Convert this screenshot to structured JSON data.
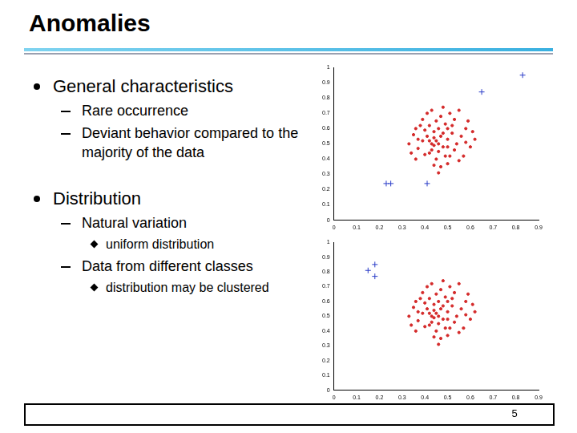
{
  "slide": {
    "title": "Anomalies",
    "bullets": [
      {
        "text": "General characteristics",
        "items": [
          {
            "text": "Rare occurrence"
          },
          {
            "text": "Deviant behavior compared to the majority of the data"
          }
        ]
      },
      {
        "text": "Distribution",
        "items": [
          {
            "text": "Natural variation",
            "items": [
              {
                "text": "uniform distribution"
              }
            ]
          },
          {
            "text": "Data from different classes",
            "items": [
              {
                "text": "distribution may be clustered"
              }
            ]
          }
        ]
      }
    ],
    "page_number": 5
  },
  "chart_data": [
    {
      "type": "scatter",
      "xlim": [
        0,
        0.9
      ],
      "ylim": [
        0,
        1
      ],
      "xticks": [
        0,
        0.1,
        0.2,
        0.3,
        0.4,
        0.5,
        0.6,
        0.7,
        0.8,
        0.9
      ],
      "yticks": [
        0,
        0.1,
        0.2,
        0.3,
        0.4,
        0.5,
        0.6,
        0.7,
        0.8,
        0.9,
        1
      ],
      "grid": false,
      "series": [
        {
          "color": "#d42a2a",
          "marker": "circle",
          "x": [
            0.45,
            0.47,
            0.43,
            0.5,
            0.44,
            0.48,
            0.41,
            0.52,
            0.46,
            0.39,
            0.54,
            0.42,
            0.49,
            0.37,
            0.56,
            0.45,
            0.51,
            0.4,
            0.58,
            0.35,
            0.47,
            0.53,
            0.38,
            0.6,
            0.44,
            0.5,
            0.36,
            0.57,
            0.41,
            0.55,
            0.33,
            0.62,
            0.48,
            0.46,
            0.39,
            0.59,
            0.43,
            0.5,
            0.46,
            0.44,
            0.48,
            0.42,
            0.53,
            0.4,
            0.52,
            0.34,
            0.61,
            0.45,
            0.49,
            0.37,
            0.55,
            0.43,
            0.51,
            0.47,
            0.58,
            0.36,
            0.46,
            0.5,
            0.44,
            0.42
          ],
          "values": [
            0.52,
            0.55,
            0.5,
            0.53,
            0.58,
            0.48,
            0.55,
            0.57,
            0.45,
            0.52,
            0.5,
            0.62,
            0.63,
            0.47,
            0.55,
            0.4,
            0.42,
            0.43,
            0.6,
            0.56,
            0.68,
            0.66,
            0.62,
            0.48,
            0.36,
            0.37,
            0.4,
            0.42,
            0.7,
            0.72,
            0.5,
            0.53,
            0.74,
            0.31,
            0.66,
            0.65,
            0.46,
            0.6,
            0.5,
            0.54,
            0.57,
            0.44,
            0.46,
            0.59,
            0.62,
            0.44,
            0.58,
            0.65,
            0.42,
            0.53,
            0.39,
            0.72,
            0.7,
            0.35,
            0.51,
            0.6,
            0.6,
            0.48,
            0.49,
            0.52
          ]
        },
        {
          "color": "#2a3cc8",
          "marker": "cross",
          "x": [
            0.83,
            0.65,
            0.23,
            0.25,
            0.41
          ],
          "values": [
            0.95,
            0.84,
            0.24,
            0.24,
            0.24
          ]
        }
      ]
    },
    {
      "type": "scatter",
      "xlim": [
        0,
        0.9
      ],
      "ylim": [
        0,
        1
      ],
      "xticks": [
        0,
        0.1,
        0.2,
        0.3,
        0.4,
        0.5,
        0.6,
        0.7,
        0.8,
        0.9
      ],
      "yticks": [
        0,
        0.1,
        0.2,
        0.3,
        0.4,
        0.5,
        0.6,
        0.7,
        0.8,
        0.9,
        1
      ],
      "grid": false,
      "series": [
        {
          "color": "#d42a2a",
          "marker": "circle",
          "x": [
            0.45,
            0.47,
            0.43,
            0.5,
            0.44,
            0.48,
            0.41,
            0.52,
            0.46,
            0.39,
            0.54,
            0.42,
            0.49,
            0.37,
            0.56,
            0.45,
            0.51,
            0.4,
            0.58,
            0.35,
            0.47,
            0.53,
            0.38,
            0.6,
            0.44,
            0.5,
            0.36,
            0.57,
            0.41,
            0.55,
            0.33,
            0.62,
            0.48,
            0.46,
            0.39,
            0.59,
            0.43,
            0.5,
            0.46,
            0.44,
            0.48,
            0.42,
            0.53,
            0.4,
            0.52,
            0.34,
            0.61,
            0.45,
            0.49,
            0.37,
            0.55,
            0.43,
            0.51,
            0.47,
            0.58,
            0.36,
            0.46,
            0.5,
            0.44,
            0.42
          ],
          "values": [
            0.52,
            0.55,
            0.5,
            0.53,
            0.58,
            0.48,
            0.55,
            0.57,
            0.45,
            0.52,
            0.5,
            0.62,
            0.63,
            0.47,
            0.55,
            0.4,
            0.42,
            0.43,
            0.6,
            0.56,
            0.68,
            0.66,
            0.62,
            0.48,
            0.36,
            0.37,
            0.4,
            0.42,
            0.7,
            0.72,
            0.5,
            0.53,
            0.74,
            0.31,
            0.66,
            0.65,
            0.46,
            0.6,
            0.5,
            0.54,
            0.57,
            0.44,
            0.46,
            0.59,
            0.62,
            0.44,
            0.58,
            0.65,
            0.42,
            0.53,
            0.39,
            0.72,
            0.7,
            0.35,
            0.51,
            0.6,
            0.6,
            0.48,
            0.49,
            0.52
          ]
        },
        {
          "color": "#2a3cc8",
          "marker": "cross",
          "x": [
            0.15,
            0.18,
            0.18
          ],
          "values": [
            0.81,
            0.85,
            0.77
          ]
        }
      ]
    }
  ]
}
